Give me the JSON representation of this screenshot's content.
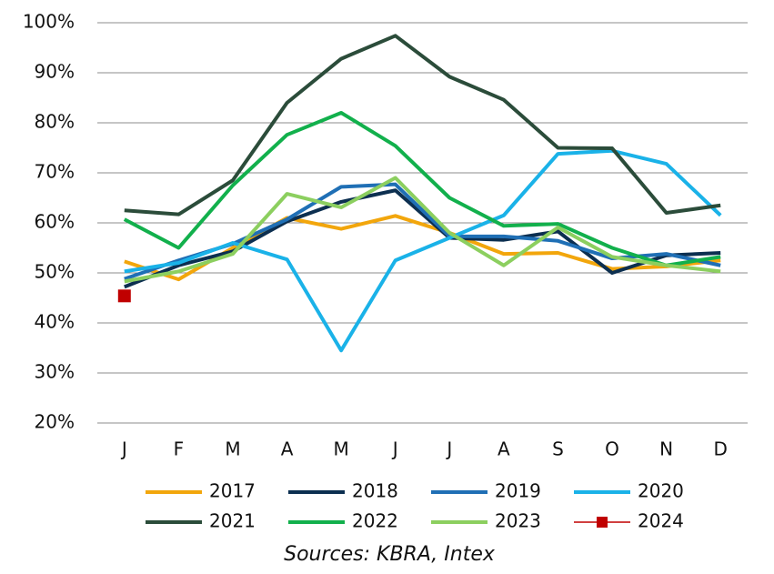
{
  "chart_data": {
    "type": "line",
    "source": "Sources: KBRA, Intex",
    "categories": [
      "J",
      "F",
      "M",
      "A",
      "M",
      "J",
      "J",
      "A",
      "S",
      "O",
      "N",
      "D"
    ],
    "ylim": [
      20,
      100
    ],
    "yticks": [
      {
        "value": 20,
        "label": "20%"
      },
      {
        "value": 30,
        "label": "30%"
      },
      {
        "value": 40,
        "label": "40%"
      },
      {
        "value": 50,
        "label": "50%"
      },
      {
        "value": 60,
        "label": "60%"
      },
      {
        "value": 70,
        "label": "70%"
      },
      {
        "value": 80,
        "label": "80%"
      },
      {
        "value": 90,
        "label": "90%"
      },
      {
        "value": 100,
        "label": "100%"
      }
    ],
    "grid": true,
    "series": [
      {
        "name": "2017",
        "color": "#f2a60c",
        "values": [
          52.3,
          48.7,
          55,
          61,
          58.8,
          61.4,
          58,
          53.8,
          54,
          50.8,
          51.3,
          52.5
        ]
      },
      {
        "name": "2018",
        "color": "#0c2f50",
        "values": [
          47.2,
          51.5,
          54.3,
          60.3,
          64.2,
          66.5,
          57,
          56.6,
          58.3,
          50,
          53.5,
          54
        ]
      },
      {
        "name": "2019",
        "color": "#1f6fb5",
        "values": [
          48.8,
          52.5,
          55.8,
          60.7,
          67.2,
          67.7,
          57.3,
          57.3,
          56.4,
          52.9,
          53.8,
          51.5
        ]
      },
      {
        "name": "2020",
        "color": "#1ab2e8",
        "values": [
          50.3,
          52,
          56,
          52.7,
          34.5,
          52.5,
          57,
          61.5,
          73.8,
          74.4,
          71.8,
          61.5
        ]
      },
      {
        "name": "2021",
        "color": "#2b4c3a",
        "values": [
          62.5,
          61.7,
          68.5,
          84,
          92.8,
          97.4,
          89.2,
          84.6,
          75,
          74.9,
          62,
          63.5
        ]
      },
      {
        "name": "2022",
        "color": "#12b04c",
        "values": [
          60.7,
          55,
          67.5,
          77.6,
          82,
          75.4,
          65,
          59.4,
          59.8,
          55,
          51.5,
          53.2
        ]
      },
      {
        "name": "2023",
        "color": "#8ccf5f",
        "values": [
          48.3,
          50.3,
          53.8,
          65.8,
          63.1,
          69,
          58,
          51.5,
          59.1,
          53.2,
          51.5,
          50.3
        ]
      },
      {
        "name": "2024",
        "color": "#c00000",
        "marker": "square",
        "values": [
          45.4,
          null,
          null,
          null,
          null,
          null,
          null,
          null,
          null,
          null,
          null,
          null
        ]
      }
    ]
  }
}
